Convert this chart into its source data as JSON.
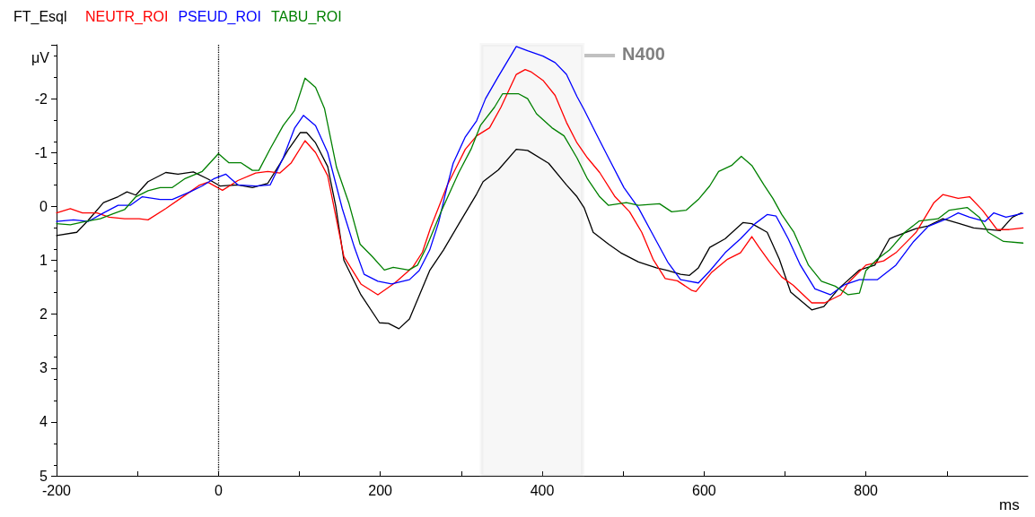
{
  "chart_data": {
    "type": "line",
    "title": "FT_Esql",
    "xlabel": "ms",
    "ylabel": "μV",
    "xlim": [
      -200,
      1000
    ],
    "xticks": [
      -200,
      {
        "value": -100,
        "label": null
      },
      0,
      {
        "value": 100,
        "label": null
      },
      200,
      {
        "value": 300,
        "label": null
      },
      400,
      {
        "value": 500,
        "label": null
      },
      600,
      {
        "value": 700,
        "label": null
      },
      800,
      {
        "value": 900,
        "label": null
      }
    ],
    "ylim": [
      5,
      -3
    ],
    "yticks": [
      {
        "value": -3,
        "label": null
      },
      -2,
      -1,
      0,
      1,
      2,
      3,
      4,
      5
    ],
    "grid": false,
    "legend": "top left",
    "marker": "none",
    "line_style": "solid",
    "ref_lines": [
      {
        "axis": "x",
        "value": 0,
        "color": "#000000",
        "line_style": "dotted"
      }
    ],
    "bands": [
      {
        "axis": "x",
        "from": 325,
        "to": 450,
        "label": "N400",
        "color": "#c0c0c0"
      }
    ],
    "series": [
      {
        "color": "#000000",
        "x": [
          -200,
          -175,
          -161,
          -142,
          -124,
          -113,
          -102,
          -87,
          -65,
          -50,
          -31,
          -13,
          2,
          24,
          42,
          61,
          76,
          87,
          101,
          109,
          120,
          135,
          145,
          155,
          176,
          199,
          210,
          223,
          236,
          261,
          278,
          298,
          319,
          327,
          346,
          368,
          382,
          408,
          430,
          443,
          452,
          463,
          482,
          497,
          519,
          541,
          555,
          571,
          582,
          593,
          607,
          626,
          648,
          659,
          678,
          693,
          707,
          733,
          748,
          766,
          792,
          811,
          829,
          862,
          877,
          895,
          914,
          933,
          951,
          966,
          981,
          992
        ],
        "values": [
          0.54,
          0.48,
          0.26,
          -0.07,
          -0.18,
          -0.27,
          -0.21,
          -0.46,
          -0.63,
          -0.6,
          -0.64,
          -0.51,
          -0.38,
          -0.4,
          -0.35,
          -0.43,
          -0.79,
          -1.07,
          -1.37,
          -1.37,
          -1.18,
          -0.74,
          0.0,
          1.0,
          1.64,
          2.16,
          2.17,
          2.27,
          2.09,
          1.19,
          0.81,
          0.3,
          -0.23,
          -0.46,
          -0.68,
          -1.06,
          -1.04,
          -0.8,
          -0.4,
          -0.18,
          0.03,
          0.48,
          0.7,
          0.86,
          1.03,
          1.14,
          1.19,
          1.26,
          1.28,
          1.14,
          0.76,
          0.6,
          0.3,
          0.32,
          0.48,
          0.98,
          1.59,
          1.92,
          1.86,
          1.53,
          1.18,
          1.09,
          0.6,
          0.41,
          0.36,
          0.23,
          0.31,
          0.4,
          0.43,
          0.45,
          0.2,
          0.12
        ]
      },
      {
        "name": "NEUTR_ROI",
        "color": "#ff0000",
        "x": [
          -200,
          -183,
          -168,
          -150,
          -135,
          -116,
          -98,
          -87,
          -65,
          -42,
          -24,
          -13,
          5,
          24,
          46,
          61,
          76,
          90,
          107,
          120,
          135,
          155,
          176,
          197,
          218,
          240,
          252,
          262,
          283,
          305,
          319,
          335,
          349,
          368,
          379,
          386,
          401,
          416,
          430,
          443,
          456,
          471,
          490,
          508,
          523,
          537,
          552,
          567,
          585,
          590,
          609,
          629,
          645,
          659,
          668,
          681,
          696,
          710,
          733,
          749,
          769,
          778,
          800,
          822,
          837,
          862,
          884,
          895,
          914,
          928,
          944,
          962,
          977,
          994
        ],
        "values": [
          0.12,
          0.04,
          0.12,
          0.12,
          0.2,
          0.23,
          0.23,
          0.25,
          0.04,
          -0.2,
          -0.39,
          -0.45,
          -0.3,
          -0.48,
          -0.62,
          -0.65,
          -0.62,
          -0.81,
          -1.22,
          -1.0,
          -0.57,
          0.93,
          1.44,
          1.64,
          1.42,
          1.13,
          0.85,
          0.4,
          -0.4,
          -1.06,
          -1.31,
          -1.46,
          -1.84,
          -2.45,
          -2.54,
          -2.5,
          -2.34,
          -2.06,
          -1.56,
          -1.18,
          -0.9,
          -0.63,
          -0.18,
          0.1,
          0.48,
          0.98,
          1.34,
          1.38,
          1.56,
          1.58,
          1.23,
          0.98,
          0.86,
          0.56,
          0.76,
          1.03,
          1.31,
          1.46,
          1.79,
          1.79,
          1.64,
          1.42,
          1.09,
          1.01,
          0.86,
          0.48,
          -0.07,
          -0.22,
          -0.15,
          -0.18,
          0.07,
          0.43,
          0.43,
          0.4
        ]
      },
      {
        "name": "PSEUD_ROI",
        "color": "#0000ff",
        "x": [
          -200,
          -179,
          -161,
          -142,
          -124,
          -109,
          -94,
          -72,
          -57,
          -35,
          -20,
          -6,
          9,
          24,
          46,
          64,
          80,
          94,
          105,
          120,
          135,
          153,
          168,
          180,
          197,
          214,
          236,
          248,
          261,
          272,
          283,
          290,
          305,
          319,
          330,
          345,
          368,
          382,
          401,
          416,
          430,
          443,
          452,
          467,
          482,
          501,
          519,
          537,
          555,
          571,
          593,
          607,
          626,
          645,
          663,
          678,
          689,
          704,
          719,
          737,
          756,
          774,
          792,
          814,
          837,
          859,
          877,
          900,
          914,
          928,
          947,
          958,
          973,
          994
        ],
        "values": [
          0.28,
          0.25,
          0.28,
          0.12,
          -0.02,
          -0.02,
          -0.18,
          -0.13,
          -0.13,
          -0.27,
          -0.38,
          -0.51,
          -0.6,
          -0.4,
          -0.38,
          -0.4,
          -0.9,
          -1.45,
          -1.69,
          -1.5,
          -1.0,
          0.04,
          0.76,
          1.26,
          1.39,
          1.44,
          1.36,
          1.19,
          0.81,
          0.3,
          -0.4,
          -0.8,
          -1.29,
          -1.59,
          -2.0,
          -2.39,
          -2.97,
          -2.89,
          -2.79,
          -2.67,
          -2.45,
          -2.04,
          -1.79,
          -1.34,
          -0.9,
          -0.35,
          0.03,
          0.53,
          1.03,
          1.36,
          1.42,
          1.2,
          0.86,
          0.6,
          0.32,
          0.15,
          0.18,
          0.6,
          1.09,
          1.53,
          1.64,
          1.45,
          1.36,
          1.36,
          1.09,
          0.65,
          0.37,
          0.23,
          0.12,
          0.2,
          0.28,
          0.12,
          0.2,
          0.13
        ]
      },
      {
        "name": "TABU_ROI",
        "color": "#008000",
        "x": [
          -200,
          -183,
          -164,
          -146,
          -131,
          -116,
          -102,
          -87,
          -72,
          -57,
          -42,
          -20,
          0,
          13,
          28,
          42,
          50,
          64,
          80,
          94,
          107,
          120,
          131,
          146,
          161,
          175,
          190,
          205,
          216,
          235,
          246,
          257,
          275,
          297,
          312,
          324,
          341,
          351,
          371,
          382,
          393,
          412,
          427,
          443,
          456,
          471,
          482,
          504,
          519,
          545,
          560,
          578,
          593,
          607,
          618,
          634,
          646,
          659,
          674,
          685,
          696,
          711,
          729,
          745,
          762,
          778,
          792,
          800,
          814,
          829,
          848,
          866,
          889,
          903,
          925,
          940,
          951,
          970,
          994
        ],
        "values": [
          0.32,
          0.34,
          0.28,
          0.23,
          0.14,
          0.06,
          -0.18,
          -0.29,
          -0.35,
          -0.35,
          -0.51,
          -0.65,
          -0.98,
          -0.81,
          -0.81,
          -0.67,
          -0.67,
          -1.07,
          -1.5,
          -1.78,
          -2.38,
          -2.21,
          -1.82,
          -0.72,
          -0.07,
          0.7,
          0.93,
          1.18,
          1.13,
          1.18,
          1.09,
          0.76,
          0.1,
          -0.63,
          -1.06,
          -1.51,
          -1.84,
          -2.09,
          -2.09,
          -2.0,
          -1.72,
          -1.46,
          -1.31,
          -0.9,
          -0.51,
          -0.18,
          -0.02,
          -0.07,
          -0.02,
          -0.05,
          0.1,
          0.07,
          -0.13,
          -0.38,
          -0.65,
          -0.76,
          -0.93,
          -0.76,
          -0.4,
          -0.15,
          0.15,
          0.48,
          1.09,
          1.39,
          1.48,
          1.64,
          1.61,
          1.19,
          0.98,
          0.81,
          0.48,
          0.27,
          0.23,
          0.07,
          0.02,
          0.2,
          0.48,
          0.65,
          0.68
        ]
      }
    ]
  }
}
